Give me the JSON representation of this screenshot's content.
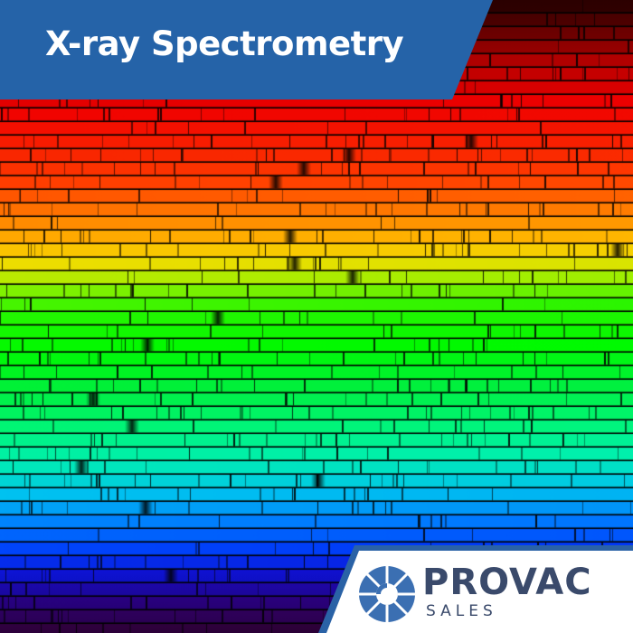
{
  "header": {
    "title": "X-ray Spectrometry"
  },
  "logo": {
    "name": "PROVAC",
    "tagline": "SALES"
  },
  "colors": {
    "banner_blue": "#2563a8",
    "logo_panel_blue": "#2a62a6",
    "logo_text": "#3a4a6b",
    "logo_mark": "#3b6fb2"
  },
  "image": {
    "subject": "solar absorption spectrum bands from red to violet"
  }
}
